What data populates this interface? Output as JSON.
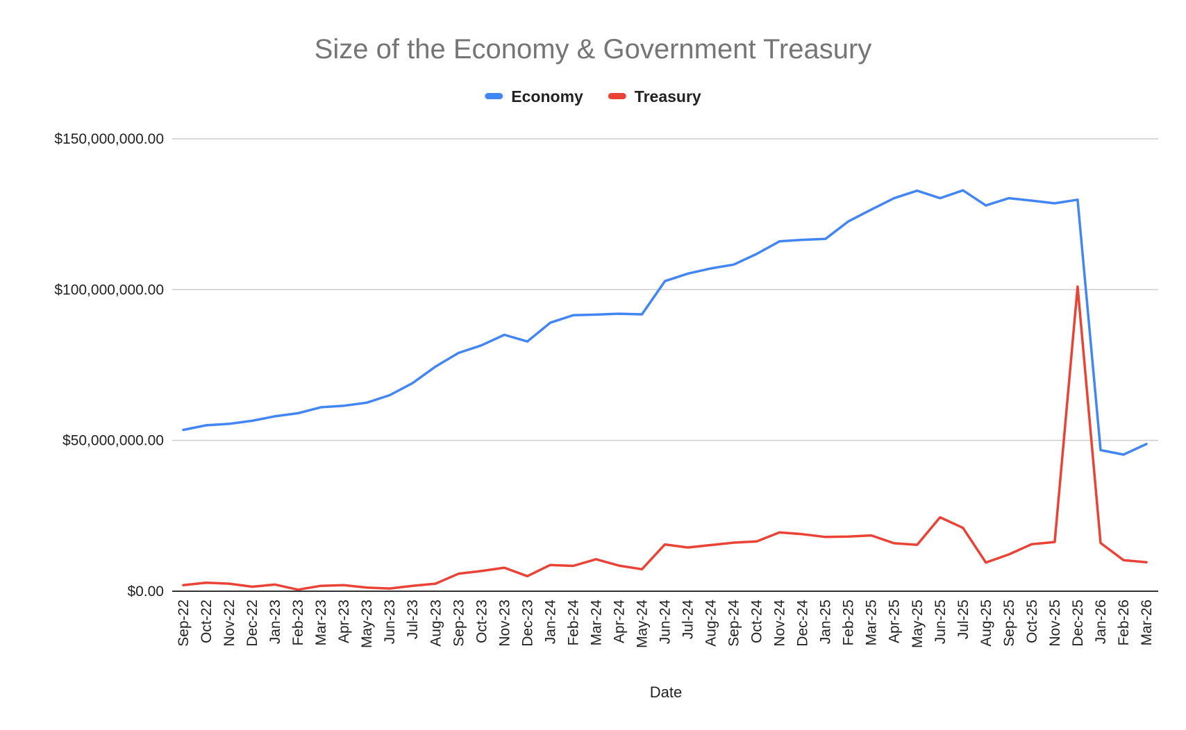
{
  "chart_data": {
    "type": "line",
    "title": "Size of the Economy & Government Treasury",
    "xlabel": "Date",
    "ylabel": "",
    "ylim": [
      0,
      150000000
    ],
    "y_ticks": [
      0,
      50000000,
      100000000,
      150000000
    ],
    "y_tick_labels": [
      "$0.00",
      "$50,000,000.00",
      "$100,000,000.00",
      "$150,000,000.00"
    ],
    "grid": true,
    "legend_position": "top",
    "categories": [
      "Sep-22",
      "Oct-22",
      "Nov-22",
      "Dec-22",
      "Jan-23",
      "Feb-23",
      "Mar-23",
      "Apr-23",
      "May-23",
      "Jun-23",
      "Jul-23",
      "Aug-23",
      "Sep-23",
      "Oct-23",
      "Nov-23",
      "Dec-23",
      "Jan-24",
      "Feb-24",
      "Mar-24",
      "Apr-24",
      "May-24",
      "Jun-24",
      "Jul-24",
      "Aug-24",
      "Sep-24",
      "Oct-24",
      "Nov-24",
      "Dec-24",
      "Jan-25",
      "Feb-25",
      "Mar-25",
      "Apr-25",
      "May-25",
      "Jun-25",
      "Jul-25",
      "Aug-25",
      "Sep-25",
      "Oct-25",
      "Nov-25",
      "Dec-25",
      "Jan-26",
      "Feb-26",
      "Mar-26"
    ],
    "series": [
      {
        "name": "Economy",
        "color": "#4285f4",
        "values": [
          53500000,
          55000000,
          55500000,
          56500000,
          58000000,
          59000000,
          61000000,
          61500000,
          62500000,
          65000000,
          69000000,
          74500000,
          79000000,
          81500000,
          85000000,
          82800000,
          89000000,
          91500000,
          91700000,
          92000000,
          91800000,
          102800000,
          105300000,
          107000000,
          108300000,
          111800000,
          116000000,
          116500000,
          116800000,
          122600000,
          126500000,
          130300000,
          132800000,
          130300000,
          132900000,
          127900000,
          130300000,
          129500000,
          128600000,
          129800000,
          46800000,
          45300000,
          48800000
        ]
      },
      {
        "name": "Treasury",
        "color": "#ea4335",
        "values": [
          2000000,
          2800000,
          2500000,
          1500000,
          2200000,
          500000,
          1800000,
          2000000,
          1200000,
          900000,
          1800000,
          2500000,
          5800000,
          6700000,
          7800000,
          5000000,
          8700000,
          8400000,
          10600000,
          8500000,
          7300000,
          15500000,
          14500000,
          15300000,
          16100000,
          16500000,
          19500000,
          18900000,
          18000000,
          18100000,
          18500000,
          15900000,
          15400000,
          24500000,
          21000000,
          9500000,
          12200000,
          15600000,
          16300000,
          101000000,
          16000000,
          10300000,
          9600000
        ]
      }
    ]
  }
}
